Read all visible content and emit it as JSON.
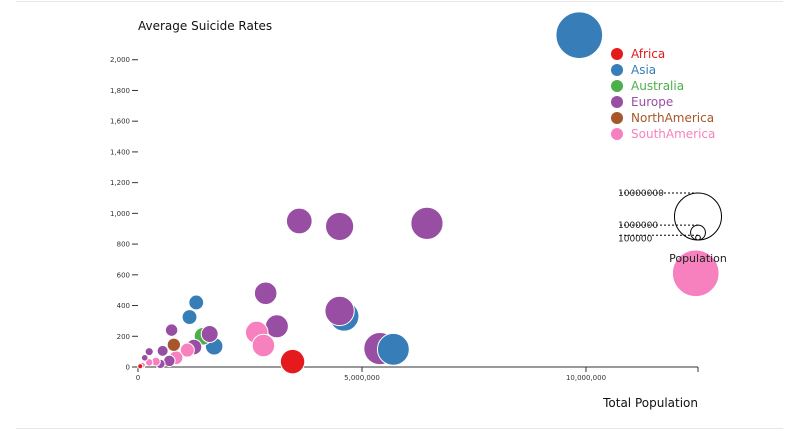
{
  "chart_data": {
    "type": "scatter",
    "title": "",
    "xlabel": "Total Population",
    "ylabel": "Average Suicide Rates",
    "xlim": [
      0,
      12500000
    ],
    "ylim": [
      0,
      2200
    ],
    "x_ticks": [
      0,
      5000000,
      10000000
    ],
    "x_tick_labels": [
      "0",
      "5,000,000",
      "10,000,000"
    ],
    "y_ticks": [
      0,
      200,
      400,
      600,
      800,
      1000,
      1200,
      1400,
      1600,
      1800,
      2000
    ],
    "y_tick_labels": [
      "0",
      "200",
      "400",
      "600",
      "800",
      "1,000",
      "1,200",
      "1,400",
      "1,600",
      "1,800",
      "2,000"
    ],
    "legend_position": "top-right",
    "legend": [
      {
        "name": "Africa",
        "color": "#e41a1c"
      },
      {
        "name": "Asia",
        "color": "#377eb8"
      },
      {
        "name": "Australia",
        "color": "#4daf4a"
      },
      {
        "name": "Europe",
        "color": "#984ea3"
      },
      {
        "name": "NorthAmerica",
        "color": "#a65628"
      },
      {
        "name": "SouthAmerica",
        "color": "#f781bf"
      }
    ],
    "size_legend": {
      "title": "Population",
      "labels": [
        "10000000",
        "1000000",
        "100000"
      ],
      "values": [
        10000000,
        1000000,
        100000
      ]
    },
    "points": [
      {
        "region": "Asia",
        "x": 9850000,
        "y": 2160,
        "size": 9850000
      },
      {
        "region": "SouthAmerica",
        "x": 12450000,
        "y": 610,
        "size": 9850000
      },
      {
        "region": "Europe",
        "x": 6450000,
        "y": 935,
        "size": 4700000
      },
      {
        "region": "Europe",
        "x": 4500000,
        "y": 915,
        "size": 3600000
      },
      {
        "region": "Europe",
        "x": 3600000,
        "y": 950,
        "size": 3000000
      },
      {
        "region": "Asia",
        "x": 4600000,
        "y": 330,
        "size": 4000000
      },
      {
        "region": "Europe",
        "x": 4500000,
        "y": 365,
        "size": 3900000
      },
      {
        "region": "Asia",
        "x": 5700000,
        "y": 115,
        "size": 4600000
      },
      {
        "region": "Europe",
        "x": 5400000,
        "y": 120,
        "size": 4700000
      },
      {
        "region": "Africa",
        "x": 3450000,
        "y": 35,
        "size": 2700000
      },
      {
        "region": "Europe",
        "x": 2850000,
        "y": 480,
        "size": 2300000
      },
      {
        "region": "Europe",
        "x": 3100000,
        "y": 265,
        "size": 2400000
      },
      {
        "region": "SouthAmerica",
        "x": 2650000,
        "y": 225,
        "size": 2300000
      },
      {
        "region": "SouthAmerica",
        "x": 2800000,
        "y": 140,
        "size": 2300000
      },
      {
        "region": "Asia",
        "x": 1300000,
        "y": 420,
        "size": 1000000
      },
      {
        "region": "Asia",
        "x": 1150000,
        "y": 325,
        "size": 1000000
      },
      {
        "region": "Asia",
        "x": 1700000,
        "y": 135,
        "size": 1400000
      },
      {
        "region": "Australia",
        "x": 1450000,
        "y": 200,
        "size": 1400000
      },
      {
        "region": "Europe",
        "x": 1600000,
        "y": 215,
        "size": 1300000
      },
      {
        "region": "Europe",
        "x": 1250000,
        "y": 130,
        "size": 1100000
      },
      {
        "region": "SouthAmerica",
        "x": 1100000,
        "y": 110,
        "size": 900000
      },
      {
        "region": "Europe",
        "x": 750000,
        "y": 240,
        "size": 700000
      },
      {
        "region": "NorthAmerica",
        "x": 800000,
        "y": 145,
        "size": 800000
      },
      {
        "region": "SouthAmerica",
        "x": 850000,
        "y": 60,
        "size": 850000
      },
      {
        "region": "Europe",
        "x": 700000,
        "y": 40,
        "size": 600000
      },
      {
        "region": "Europe",
        "x": 550000,
        "y": 105,
        "size": 550000
      },
      {
        "region": "Europe",
        "x": 500000,
        "y": 20,
        "size": 400000
      },
      {
        "region": "SouthAmerica",
        "x": 400000,
        "y": 35,
        "size": 350000
      },
      {
        "region": "Europe",
        "x": 250000,
        "y": 100,
        "size": 300000
      },
      {
        "region": "SouthAmerica",
        "x": 250000,
        "y": 30,
        "size": 250000
      },
      {
        "region": "Europe",
        "x": 150000,
        "y": 60,
        "size": 200000
      },
      {
        "region": "SouthAmerica",
        "x": 100000,
        "y": 12,
        "size": 150000
      },
      {
        "region": "Africa",
        "x": 50000,
        "y": 5,
        "size": 120000
      }
    ]
  }
}
